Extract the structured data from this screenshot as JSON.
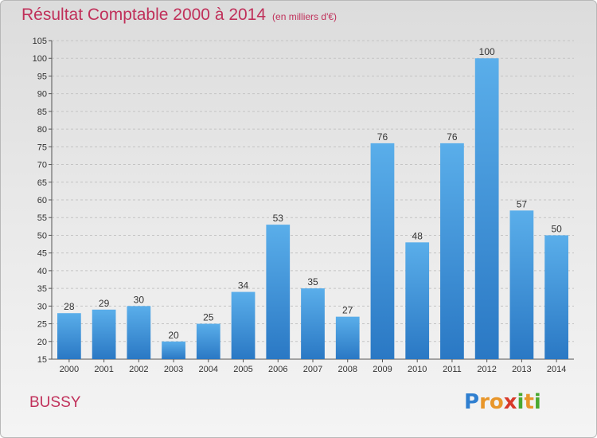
{
  "chart_data": {
    "type": "bar",
    "title": "Résultat Comptable 2000 à 2014",
    "subtitle": "(en milliers d'€)",
    "xlabel": "",
    "ylabel": "",
    "categories": [
      "2000",
      "2001",
      "2002",
      "2003",
      "2004",
      "2005",
      "2006",
      "2007",
      "2008",
      "2009",
      "2010",
      "2011",
      "2012",
      "2013",
      "2014"
    ],
    "values": [
      28,
      29,
      30,
      20,
      25,
      34,
      53,
      35,
      27,
      76,
      48,
      76,
      100,
      57,
      50
    ],
    "ylim": [
      15,
      105
    ],
    "ytick_step": 5,
    "grid": true,
    "bar_color": "#3a8fd8"
  },
  "footer": {
    "commune": "BUSSY",
    "logo_letters": [
      "P",
      "r",
      "o",
      "x",
      "i",
      "t",
      "i"
    ],
    "logo_colors": [
      "#2f7fd0",
      "#e8962a",
      "#e8962a",
      "#d83a2a",
      "#4aa830",
      "#e8962a",
      "#4aa830"
    ]
  }
}
